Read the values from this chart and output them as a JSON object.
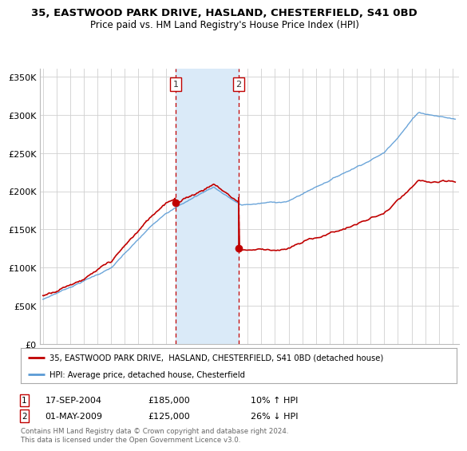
{
  "title": "35, EASTWOOD PARK DRIVE, HASLAND, CHESTERFIELD, S41 0BD",
  "subtitle": "Price paid vs. HM Land Registry's House Price Index (HPI)",
  "ylim": [
    0,
    360000
  ],
  "xlim_start": 1994.8,
  "xlim_end": 2025.5,
  "transaction1_date": 2004.72,
  "transaction1_price": 185000,
  "transaction1_text": "17-SEP-2004",
  "transaction1_pct": "10% ↑ HPI",
  "transaction2_date": 2009.33,
  "transaction2_price": 125000,
  "transaction2_text": "01-MAY-2009",
  "transaction2_pct": "26% ↓ HPI",
  "hpi_color": "#5b9bd5",
  "price_color": "#c00000",
  "shade_color": "#daeaf8",
  "legend_label_price": "35, EASTWOOD PARK DRIVE,  HASLAND, CHESTERFIELD, S41 0BD (detached house)",
  "legend_label_hpi": "HPI: Average price, detached house, Chesterfield",
  "footnote": "Contains HM Land Registry data © Crown copyright and database right 2024.\nThis data is licensed under the Open Government Licence v3.0.",
  "background_color": "#ffffff",
  "grid_color": "#d0d0d0"
}
